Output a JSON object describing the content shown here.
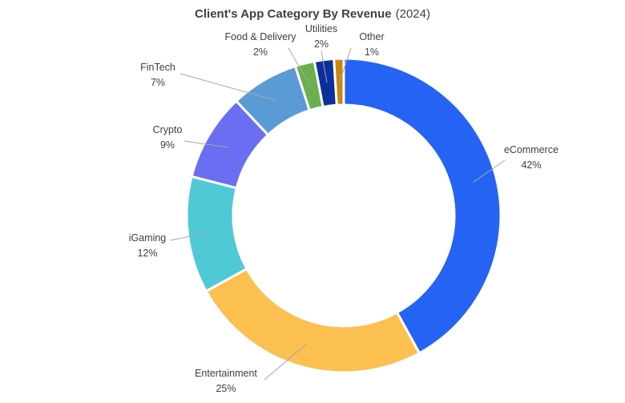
{
  "chart_data": {
    "type": "pie",
    "title": "Client's App Category By Revenue",
    "subtitle": "(2024)",
    "donut": true,
    "slices": [
      {
        "label": "eCommerce",
        "value": 42,
        "value_label": "42%",
        "color": "#2563f5"
      },
      {
        "label": "Entertainment",
        "value": 25,
        "value_label": "25%",
        "color": "#fbc050"
      },
      {
        "label": "iGaming",
        "value": 12,
        "value_label": "12%",
        "color": "#4fc9d6"
      },
      {
        "label": "Crypto",
        "value": 9,
        "value_label": "9%",
        "color": "#6a6ef0"
      },
      {
        "label": "FinTech",
        "value": 7,
        "value_label": "7%",
        "color": "#5b9bd5"
      },
      {
        "label": "Food & Delivery",
        "value": 2,
        "value_label": "2%",
        "color": "#6ab04c"
      },
      {
        "label": "Utilities",
        "value": 2,
        "value_label": "2%",
        "color": "#0d2f9e"
      },
      {
        "label": "Other",
        "value": 1,
        "value_label": "1%",
        "color": "#c8860e"
      }
    ]
  }
}
